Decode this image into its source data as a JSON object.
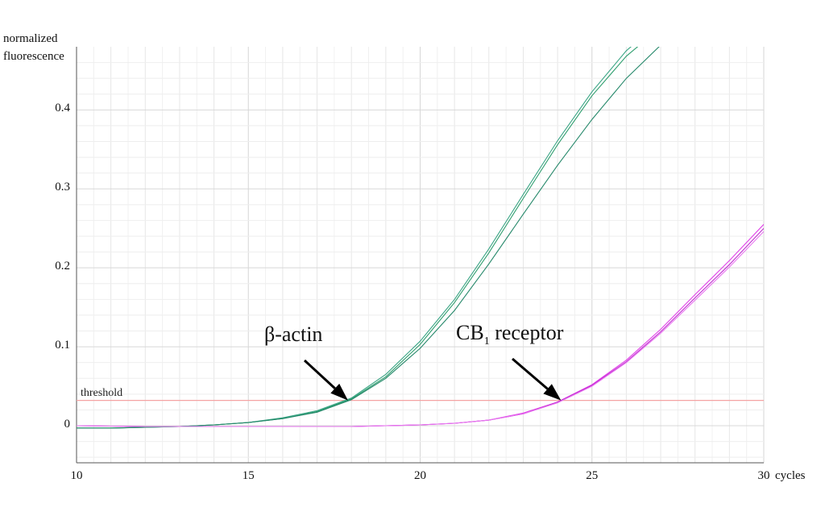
{
  "chart_data": {
    "type": "line",
    "ylabel_lines": [
      "normalized",
      "fluorescence"
    ],
    "xlabel": "cycles",
    "xlim": [
      10,
      30
    ],
    "ylim": [
      -0.047,
      0.48
    ],
    "x_ticks": [
      10,
      15,
      20,
      25,
      30
    ],
    "y_ticks": [
      {
        "value": 0.4,
        "label": "0.4"
      },
      {
        "value": 0.3,
        "label": "0.3"
      },
      {
        "value": 0.2,
        "label": "0.2"
      },
      {
        "value": 0.1,
        "label": "0.1"
      },
      {
        "value": 0.0,
        "label": "0"
      }
    ],
    "grid": true,
    "threshold": {
      "value": 0.032,
      "label": "threshold",
      "color": "#f4a3a3"
    },
    "annotations": [
      {
        "text": "β-actin",
        "x": 17.9,
        "y": 0.032
      },
      {
        "text_main": "CB",
        "text_sub": "1",
        "text_tail": " receptor",
        "x": 24.1,
        "y": 0.032
      }
    ],
    "series": [
      {
        "group": "beta-actin",
        "color": "#2e9e6e",
        "x": [
          10,
          11,
          12,
          13,
          14,
          15,
          16,
          17,
          18,
          19,
          20,
          21,
          22,
          23,
          24,
          25,
          26,
          26.6
        ],
        "y": [
          -0.003,
          -0.003,
          -0.002,
          -0.001,
          0.001,
          0.004,
          0.009,
          0.018,
          0.034,
          0.062,
          0.103,
          0.156,
          0.219,
          0.288,
          0.356,
          0.418,
          0.468,
          0.49
        ]
      },
      {
        "group": "beta-actin",
        "color": "#3aa585",
        "x": [
          10,
          11,
          12,
          13,
          14,
          15,
          16,
          17,
          18,
          19,
          20,
          21,
          22,
          23,
          24,
          25,
          26,
          26.4
        ],
        "y": [
          -0.003,
          -0.003,
          -0.002,
          -0.001,
          0.001,
          0.004,
          0.01,
          0.019,
          0.035,
          0.065,
          0.107,
          0.16,
          0.224,
          0.293,
          0.361,
          0.423,
          0.475,
          0.49
        ]
      },
      {
        "group": "beta-actin",
        "color": "#25886a",
        "x": [
          10,
          11,
          12,
          13,
          14,
          15,
          16,
          17,
          18,
          19,
          20,
          21,
          22,
          23,
          24,
          25,
          26,
          27
        ],
        "y": [
          -0.003,
          -0.003,
          -0.002,
          -0.001,
          0.001,
          0.004,
          0.009,
          0.017,
          0.033,
          0.06,
          0.098,
          0.146,
          0.205,
          0.268,
          0.33,
          0.388,
          0.44,
          0.482
        ]
      },
      {
        "group": "CB1 receptor",
        "color": "#e040e8",
        "x": [
          10,
          12,
          14,
          16,
          18,
          19,
          20,
          21,
          22,
          23,
          24,
          25,
          26,
          27,
          28,
          29,
          30
        ],
        "y": [
          0.0,
          -0.001,
          -0.001,
          -0.001,
          -0.001,
          0.0,
          0.001,
          0.003,
          0.007,
          0.016,
          0.03,
          0.052,
          0.083,
          0.122,
          0.166,
          0.209,
          0.255
        ]
      },
      {
        "group": "CB1 receptor",
        "color": "#c02ad0",
        "x": [
          10,
          12,
          14,
          16,
          18,
          19,
          20,
          21,
          22,
          23,
          24,
          25,
          26,
          27,
          28,
          29,
          30
        ],
        "y": [
          0.0,
          -0.001,
          -0.001,
          -0.001,
          -0.001,
          0.0,
          0.001,
          0.003,
          0.007,
          0.015,
          0.03,
          0.051,
          0.081,
          0.119,
          0.162,
          0.204,
          0.25
        ]
      },
      {
        "group": "CB1 receptor",
        "color": "#e878f0",
        "x": [
          10,
          12,
          14,
          16,
          18,
          19,
          20,
          21,
          22,
          23,
          24,
          25,
          26,
          27,
          28,
          29,
          30
        ],
        "y": [
          0.0,
          -0.001,
          -0.001,
          -0.001,
          -0.001,
          0.0,
          0.001,
          0.003,
          0.007,
          0.015,
          0.029,
          0.05,
          0.08,
          0.117,
          0.159,
          0.201,
          0.246
        ]
      }
    ]
  }
}
